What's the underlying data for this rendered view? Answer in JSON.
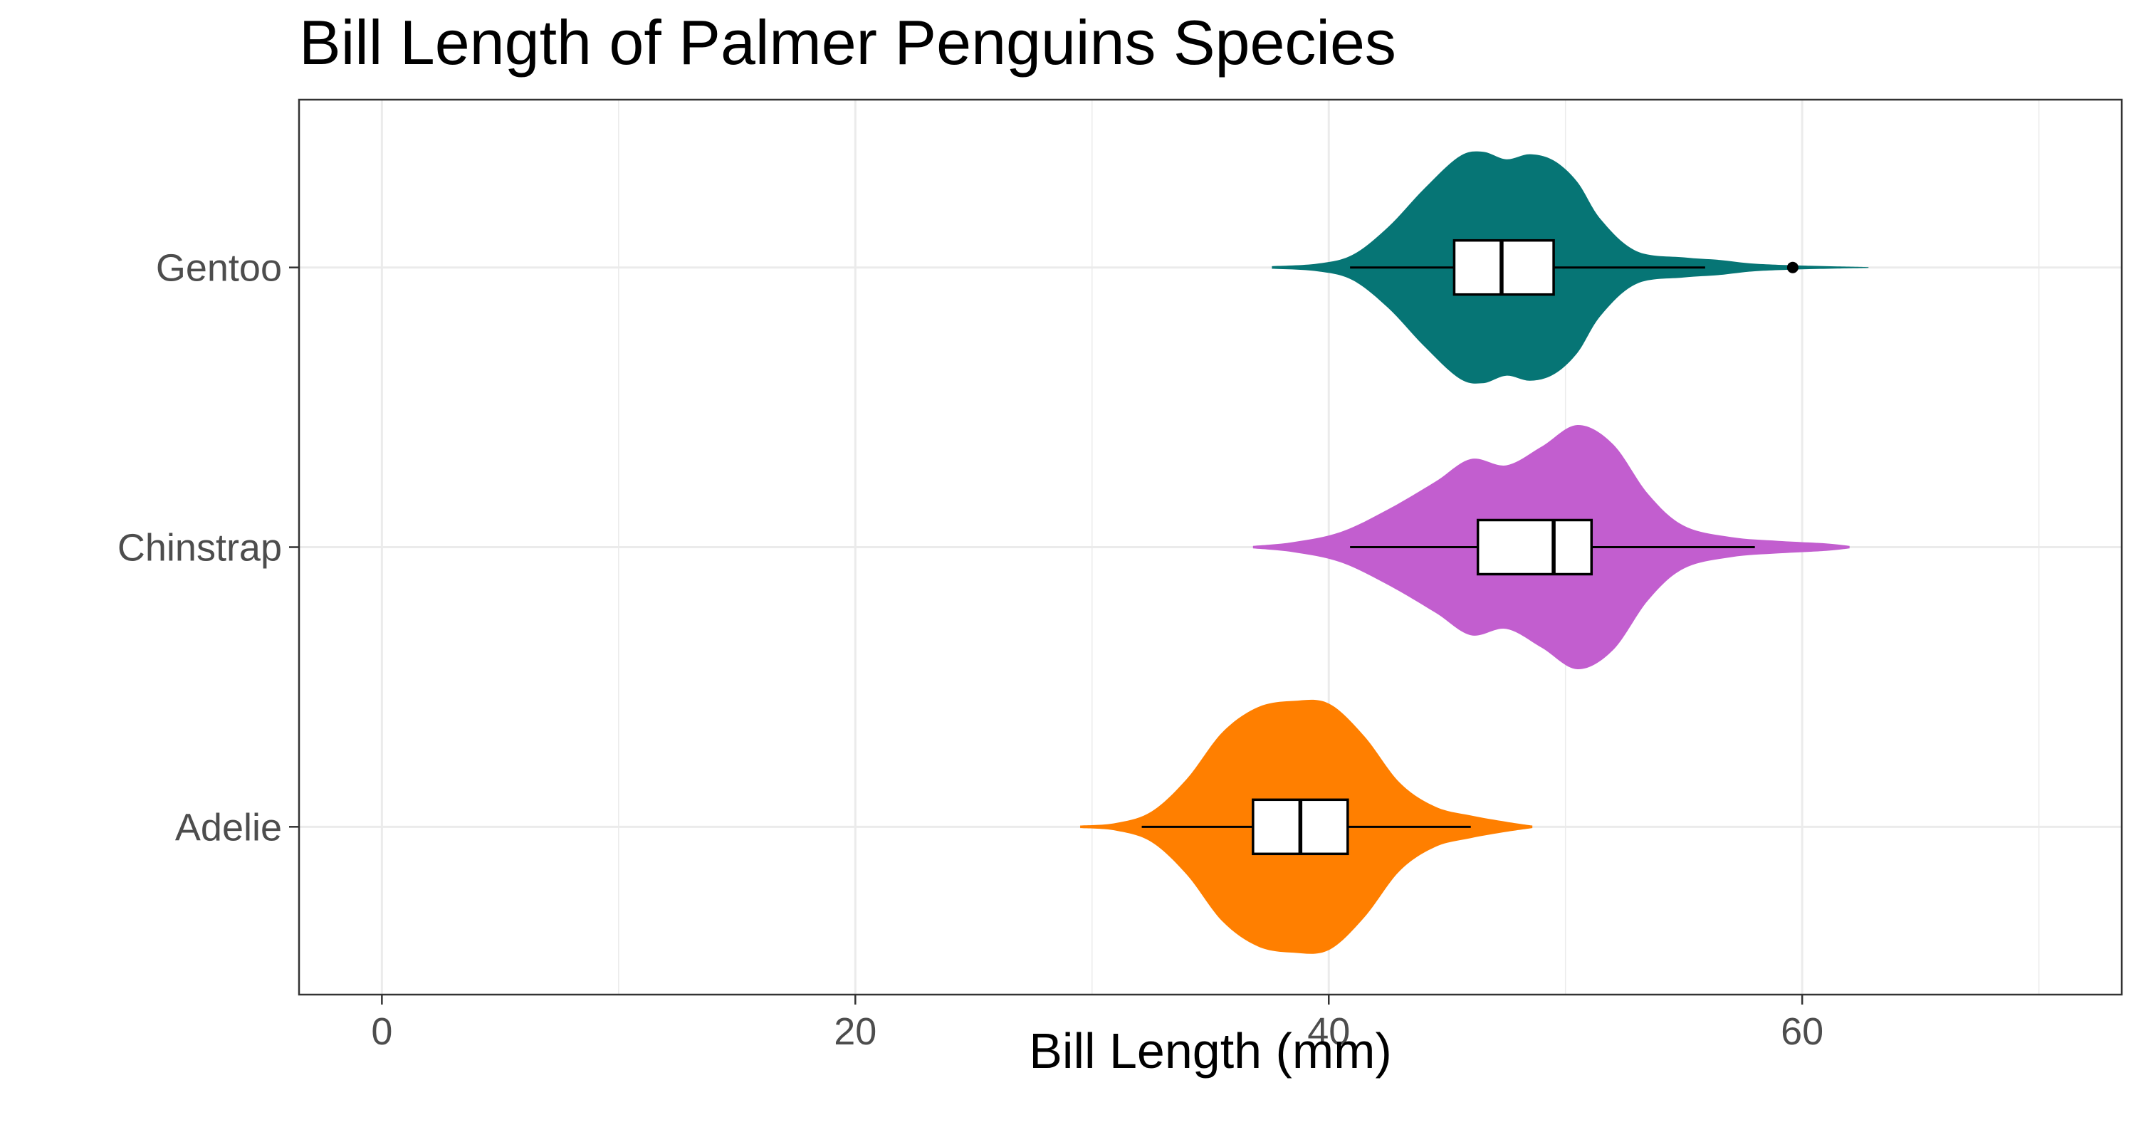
{
  "chart_data": {
    "type": "violin",
    "title": "Bill Length of Palmer Penguins Species",
    "xlabel": "Bill Length (mm)",
    "ylabel": "",
    "xlim": [
      -3.5,
      73.5
    ],
    "xticks": [
      "0",
      "20",
      "40",
      "60"
    ],
    "xtick_values": [
      0,
      20,
      40,
      60
    ],
    "x_minor_grid": [
      10,
      30,
      50,
      70
    ],
    "grid": true,
    "legend": "none",
    "categories": [
      "Adelie",
      "Chinstrap",
      "Gentoo"
    ],
    "series": [
      {
        "name": "Adelie",
        "color": "#ff7f00",
        "box": {
          "whisker_low": 32.1,
          "q1": 36.8,
          "median": 38.8,
          "q3": 40.8,
          "whisker_high": 46.0
        },
        "outliers": [],
        "density": [
          [
            29.5,
            0.01
          ],
          [
            31,
            0.03
          ],
          [
            32.5,
            0.12
          ],
          [
            34,
            0.38
          ],
          [
            35.5,
            0.75
          ],
          [
            37,
            0.95
          ],
          [
            38.5,
            1.0
          ],
          [
            40,
            0.98
          ],
          [
            41.5,
            0.72
          ],
          [
            43,
            0.35
          ],
          [
            44.5,
            0.16
          ],
          [
            46,
            0.09
          ],
          [
            47.5,
            0.04
          ],
          [
            48.6,
            0.01
          ]
        ]
      },
      {
        "name": "Chinstrap",
        "color": "#c25ecf",
        "box": {
          "whisker_low": 40.9,
          "q1": 46.3,
          "median": 49.5,
          "q3": 51.1,
          "whisker_high": 58.0
        },
        "outliers": [],
        "density": [
          [
            36.8,
            0.01
          ],
          [
            38.5,
            0.04
          ],
          [
            40.5,
            0.12
          ],
          [
            42.5,
            0.3
          ],
          [
            44.5,
            0.52
          ],
          [
            46,
            0.7
          ],
          [
            47.5,
            0.65
          ],
          [
            49,
            0.8
          ],
          [
            50.5,
            0.97
          ],
          [
            52,
            0.82
          ],
          [
            53.5,
            0.42
          ],
          [
            55,
            0.17
          ],
          [
            57,
            0.08
          ],
          [
            59,
            0.05
          ],
          [
            61,
            0.03
          ],
          [
            62,
            0.01
          ]
        ]
      },
      {
        "name": "Gentoo",
        "color": "#067575",
        "box": {
          "whisker_low": 40.9,
          "q1": 45.3,
          "median": 47.3,
          "q3": 49.5,
          "whisker_high": 55.9
        },
        "outliers": [
          59.6
        ],
        "density": [
          [
            37.6,
            0.01
          ],
          [
            39.5,
            0.03
          ],
          [
            41,
            0.1
          ],
          [
            42.5,
            0.32
          ],
          [
            44,
            0.62
          ],
          [
            45.5,
            0.88
          ],
          [
            46.5,
            0.92
          ],
          [
            47.5,
            0.86
          ],
          [
            48.5,
            0.9
          ],
          [
            49.5,
            0.85
          ],
          [
            50.5,
            0.68
          ],
          [
            51.5,
            0.38
          ],
          [
            53,
            0.13
          ],
          [
            55,
            0.08
          ],
          [
            56.5,
            0.06
          ],
          [
            58,
            0.03
          ],
          [
            60,
            0.015
          ],
          [
            61.5,
            0.008
          ],
          [
            62.8,
            0.003
          ]
        ]
      }
    ]
  }
}
